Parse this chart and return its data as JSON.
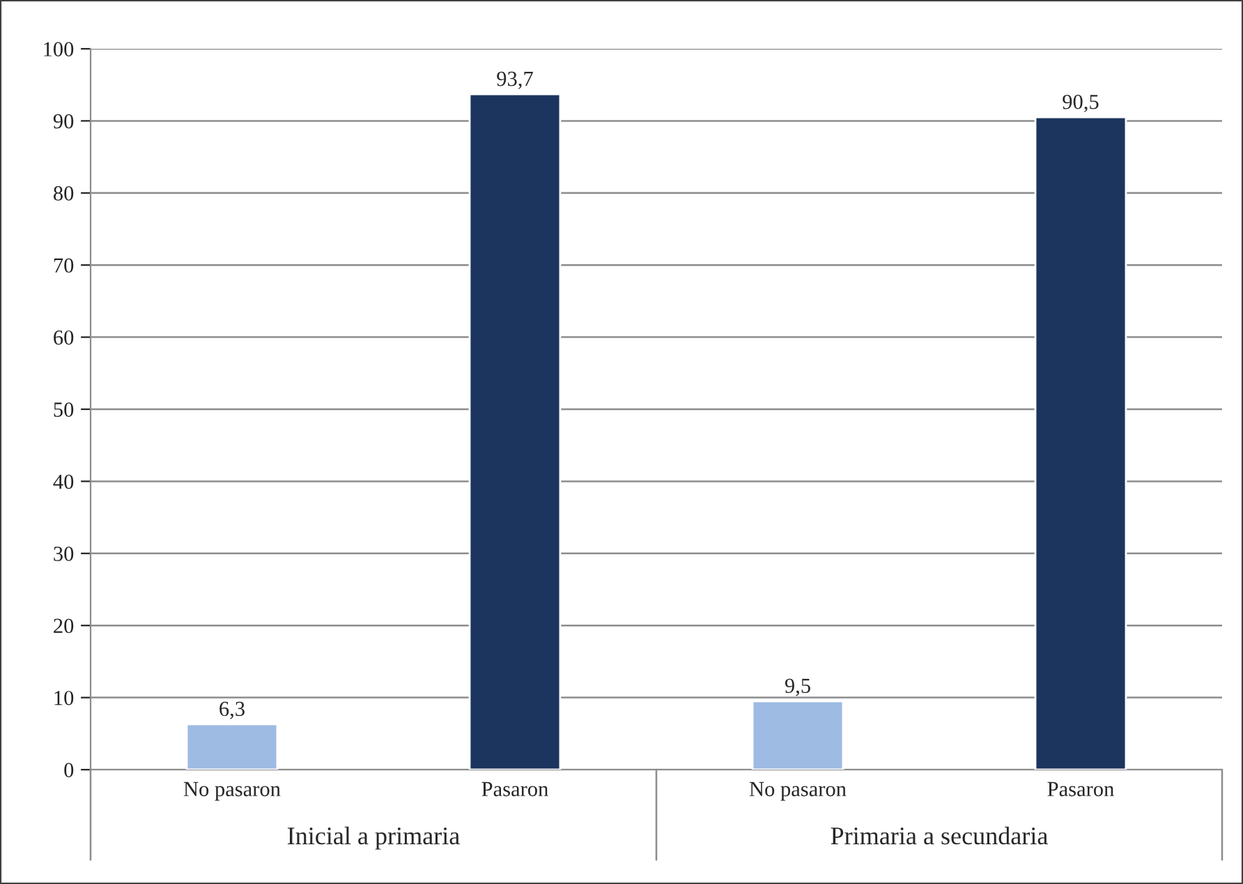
{
  "chart_data": {
    "type": "bar",
    "categories": [
      "No pasaron",
      "Pasaron",
      "No pasaron",
      "Pasaron"
    ],
    "values": [
      6.3,
      93.7,
      9.5,
      90.5
    ],
    "colors": [
      "#9dbbe3",
      "#1c355e",
      "#9dbbe3",
      "#1c355e"
    ],
    "value_labels": [
      "6,3",
      "93,7",
      "9,5",
      "90,5"
    ],
    "annotations": [
      "Inicial a primaria",
      "Primaria a secundaria"
    ],
    "ylim": [
      0,
      100
    ],
    "yticks": [
      0,
      10,
      20,
      30,
      40,
      50,
      60,
      70,
      80,
      90,
      100
    ],
    "grid": "y",
    "legend": false
  }
}
